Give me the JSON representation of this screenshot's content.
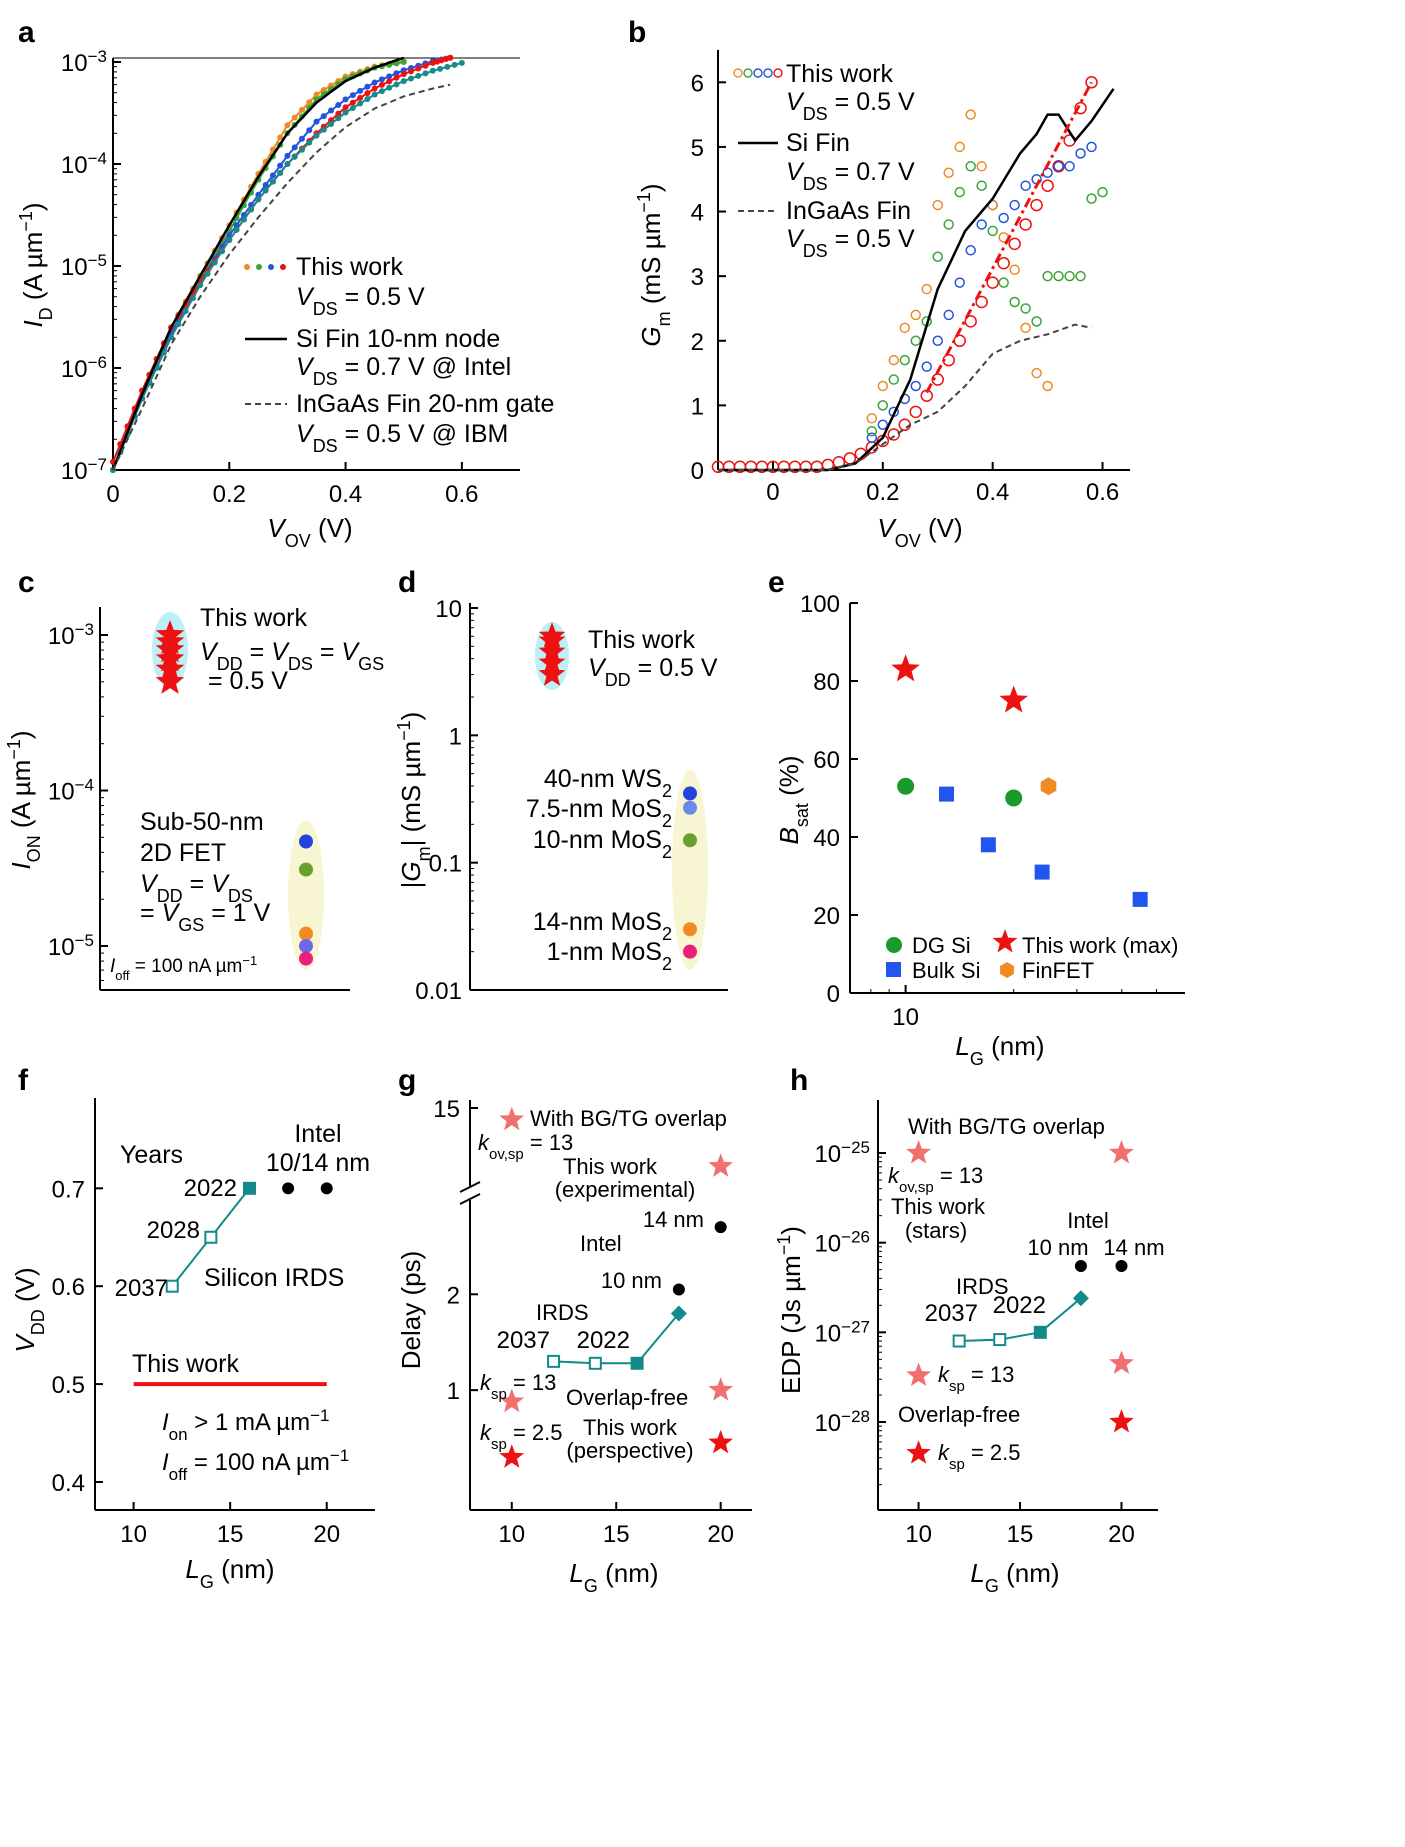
{
  "chart_data": [
    {
      "panel": "a",
      "type": "line",
      "xlabel": "V_OV (V)",
      "ylabel": "I_D (A μm^-1)",
      "xlim": [
        0,
        0.7
      ],
      "ylim": [
        1e-07,
        0.0011
      ],
      "yscale": "log",
      "x_ticks": [
        "0",
        "0.2",
        "0.4",
        "0.6"
      ],
      "y_ticks": [
        "10^-7",
        "10^-6",
        "10^-5",
        "10^-4",
        "10^-3"
      ],
      "series": [
        {
          "name": "This work",
          "color": "#f08a24",
          "x": [
            0,
            0.05,
            0.1,
            0.15,
            0.2,
            0.25,
            0.3,
            0.35,
            0.4,
            0.45,
            0.5
          ],
          "y": [
            1e-07,
            6e-07,
            2.5e-06,
            8e-06,
            2.5e-05,
            8e-05,
            0.00024,
            0.00048,
            0.00072,
            0.0009,
            0.00102
          ]
        },
        {
          "name": "This work",
          "color": "#3aa33a",
          "x": [
            0,
            0.05,
            0.1,
            0.15,
            0.2,
            0.25,
            0.3,
            0.35,
            0.4,
            0.45,
            0.5
          ],
          "y": [
            1e-07,
            5e-07,
            2.2e-06,
            7.5e-06,
            2.2e-05,
            7e-05,
            0.0002,
            0.00043,
            0.00068,
            0.00088,
            0.001
          ]
        },
        {
          "name": "This work",
          "color": "#2255dd",
          "x": [
            0,
            0.05,
            0.1,
            0.15,
            0.2,
            0.25,
            0.3,
            0.35,
            0.4,
            0.45,
            0.5,
            0.55,
            0.58
          ],
          "y": [
            1e-07,
            5e-07,
            2.2e-06,
            7e-06,
            2e-05,
            5e-05,
            0.00012,
            0.00026,
            0.00043,
            0.00063,
            0.00083,
            0.00102,
            0.0011
          ]
        },
        {
          "name": "This work",
          "color": "#ee1111",
          "x": [
            0,
            0.05,
            0.1,
            0.15,
            0.2,
            0.25,
            0.3,
            0.35,
            0.4,
            0.45,
            0.5,
            0.55,
            0.58
          ],
          "y": [
            1.2e-07,
            6e-07,
            2.5e-06,
            7e-06,
            1.8e-05,
            4.5e-05,
            0.0001,
            0.0002,
            0.00036,
            0.00055,
            0.00076,
            0.00098,
            0.0011
          ]
        },
        {
          "name": "This work",
          "color": "#1a8a8a",
          "x": [
            0,
            0.05,
            0.1,
            0.15,
            0.2,
            0.25,
            0.3,
            0.35,
            0.4,
            0.45,
            0.5,
            0.55,
            0.6
          ],
          "y": [
            1e-07,
            5e-07,
            2e-06,
            6.5e-06,
            1.8e-05,
            4.5e-05,
            0.0001,
            0.00019,
            0.00032,
            0.00048,
            0.00065,
            0.00082,
            0.00098
          ]
        },
        {
          "name": "Si Fin 10-nm node",
          "color": "#000000",
          "style": "solid",
          "x": [
            0,
            0.05,
            0.1,
            0.15,
            0.2,
            0.25,
            0.3,
            0.35,
            0.4,
            0.45,
            0.5
          ],
          "y": [
            1e-07,
            5.5e-07,
            2.5e-06,
            8e-06,
            2.5e-05,
            7.5e-05,
            0.0002,
            0.0004,
            0.00065,
            0.00088,
            0.0011
          ]
        },
        {
          "name": "InGaAs Fin 20-nm gate",
          "color": "#444444",
          "style": "dashed",
          "x": [
            0,
            0.05,
            0.1,
            0.15,
            0.2,
            0.25,
            0.3,
            0.35,
            0.4,
            0.45,
            0.5,
            0.55,
            0.58
          ],
          "y": [
            1e-07,
            4e-07,
            1.7e-06,
            5e-06,
            1.3e-05,
            3e-05,
            6.5e-05,
            0.00013,
            0.00023,
            0.00035,
            0.00046,
            0.00055,
            0.0006
          ]
        }
      ],
      "legend": [
        {
          "name": "This work",
          "cond": "V_DS = 0.5 V"
        },
        {
          "name": "Si Fin 10-nm node",
          "cond": "V_DS = 0.7 V @ Intel"
        },
        {
          "name": "InGaAs Fin 20-nm gate",
          "cond": "V_DS = 0.5 V @ IBM"
        }
      ]
    },
    {
      "panel": "b",
      "type": "scatter",
      "xlabel": "V_OV (V)",
      "ylabel": "G_m (mS μm^-1)",
      "xlim": [
        -0.1,
        0.65
      ],
      "ylim": [
        0,
        6.5
      ],
      "x_ticks": [
        "0",
        "0.2",
        "0.4",
        "0.6"
      ],
      "y_ticks": [
        "0",
        "1",
        "2",
        "3",
        "4",
        "5",
        "6"
      ],
      "series": [
        {
          "name": "This work",
          "color": "#ee1111",
          "marker": "open-circle",
          "x": [
            -0.1,
            -0.08,
            -0.06,
            -0.04,
            -0.02,
            0,
            0.02,
            0.04,
            0.06,
            0.08,
            0.1,
            0.12,
            0.14,
            0.16,
            0.18,
            0.2,
            0.22,
            0.24,
            0.26,
            0.28,
            0.3,
            0.32,
            0.34,
            0.36,
            0.38,
            0.4,
            0.42,
            0.44,
            0.46,
            0.48,
            0.5,
            0.52,
            0.54,
            0.56,
            0.58
          ],
          "y": [
            0.05,
            0.05,
            0.05,
            0.05,
            0.05,
            0.05,
            0.05,
            0.05,
            0.05,
            0.05,
            0.08,
            0.12,
            0.18,
            0.25,
            0.35,
            0.45,
            0.55,
            0.7,
            0.9,
            1.15,
            1.4,
            1.7,
            2.0,
            2.3,
            2.6,
            2.9,
            3.2,
            3.5,
            3.8,
            4.1,
            4.4,
            4.7,
            5.1,
            5.6,
            6.0
          ]
        },
        {
          "name": "This work",
          "color": "#2255dd",
          "marker": "open-circle",
          "x": [
            0.18,
            0.2,
            0.22,
            0.24,
            0.26,
            0.28,
            0.3,
            0.32,
            0.34,
            0.36,
            0.38,
            0.4,
            0.42,
            0.44,
            0.46,
            0.48,
            0.5,
            0.52,
            0.54,
            0.56,
            0.58
          ],
          "y": [
            0.5,
            0.7,
            0.9,
            1.1,
            1.3,
            1.6,
            2.0,
            2.4,
            2.9,
            3.4,
            3.8,
            4.1,
            3.9,
            4.1,
            4.4,
            4.5,
            4.6,
            4.7,
            4.7,
            4.9,
            5.0
          ]
        },
        {
          "name": "This work",
          "color": "#3aa33a",
          "marker": "open-circle",
          "x": [
            0.18,
            0.2,
            0.22,
            0.24,
            0.26,
            0.28,
            0.3,
            0.32,
            0.34,
            0.36,
            0.38,
            0.4,
            0.42,
            0.44,
            0.46,
            0.48,
            0.5,
            0.52,
            0.54,
            0.56,
            0.58,
            0.6
          ],
          "y": [
            0.6,
            1.0,
            1.4,
            1.7,
            2.0,
            2.3,
            3.3,
            3.8,
            4.3,
            4.7,
            4.4,
            3.7,
            2.9,
            2.6,
            2.5,
            2.3,
            3.0,
            3.0,
            3.0,
            3.0,
            4.2,
            4.3
          ]
        },
        {
          "name": "This work",
          "color": "#f08a24",
          "marker": "open-circle",
          "x": [
            0.18,
            0.2,
            0.22,
            0.24,
            0.26,
            0.28,
            0.3,
            0.32,
            0.34,
            0.36,
            0.38,
            0.4,
            0.42,
            0.44,
            0.46,
            0.48,
            0.5
          ],
          "y": [
            0.8,
            1.3,
            1.7,
            2.2,
            2.4,
            2.8,
            4.1,
            4.6,
            5.0,
            5.5,
            4.7,
            4.1,
            3.6,
            3.1,
            2.2,
            1.5,
            1.3
          ]
        },
        {
          "name": "Si Fin",
          "color": "#000000",
          "style": "solid",
          "x": [
            -0.1,
            0,
            0.1,
            0.15,
            0.2,
            0.25,
            0.3,
            0.35,
            0.4,
            0.45,
            0.48,
            0.5,
            0.52,
            0.55,
            0.58,
            0.62
          ],
          "y": [
            0,
            0,
            0,
            0.1,
            0.5,
            1.4,
            2.8,
            3.7,
            4.2,
            4.9,
            5.2,
            5.5,
            5.5,
            5.1,
            5.4,
            5.9
          ]
        },
        {
          "name": "InGaAs Fin",
          "color": "#444444",
          "style": "dashed",
          "x": [
            -0.1,
            0,
            0.1,
            0.15,
            0.2,
            0.25,
            0.3,
            0.35,
            0.4,
            0.45,
            0.5,
            0.55,
            0.58
          ],
          "y": [
            0,
            0,
            0,
            0.1,
            0.4,
            0.7,
            0.9,
            1.3,
            1.8,
            2.0,
            2.1,
            2.25,
            2.2
          ]
        }
      ],
      "fit": {
        "color": "#ee1111",
        "style": "dash-dot",
        "x": [
          0.28,
          0.58
        ],
        "y": [
          1.2,
          6.0
        ]
      },
      "legend": [
        {
          "name": "This work",
          "cond": "V_DS = 0.5 V"
        },
        {
          "name": "Si Fin",
          "cond": "V_DS = 0.7 V"
        },
        {
          "name": "InGaAs Fin",
          "cond": "V_DS = 0.5 V"
        }
      ]
    },
    {
      "panel": "c",
      "type": "scatter",
      "ylabel": "I_ON (A μm^-1)",
      "yscale": "log",
      "ylim": [
        8e-06,
        0.002
      ],
      "y_ticks": [
        "10^-5",
        "10^-4",
        "10^-3"
      ],
      "this_work": {
        "label": "This work",
        "cond1": "V_DD = V_DS = V_GS",
        "cond2": "= 0.5 V",
        "values": [
          0.0005,
          0.0006,
          0.0007,
          0.0008,
          0.0009,
          0.001
        ]
      },
      "points": [
        {
          "y": 4.7e-05,
          "color": "#2244dd"
        },
        {
          "y": 3.1e-05,
          "color": "#6aa02a"
        },
        {
          "y": 1.2e-05,
          "color": "#f08a24"
        },
        {
          "y": 1e-05,
          "color": "#6a6ae8"
        },
        {
          "y": 8.3e-06,
          "color": "#e8207a"
        }
      ],
      "group_label": [
        "Sub-50-nm",
        "2D FET",
        "V_DD = V_DS",
        "= V_GS = 1 V"
      ],
      "note": "I_off = 100 nA μm^-1"
    },
    {
      "panel": "d",
      "type": "scatter",
      "ylabel": "|G_m| (mS μm^-1)",
      "yscale": "log",
      "ylim": [
        0.01,
        10
      ],
      "y_ticks": [
        "0.01",
        "0.1",
        "1",
        "10"
      ],
      "this_work": {
        "label": "This work",
        "cond": "V_DD = 0.5 V",
        "values": [
          3,
          3.7,
          4.5,
          5.5,
          6
        ]
      },
      "points": [
        {
          "label": "40-nm WS2",
          "y": 0.35,
          "color": "#2244dd"
        },
        {
          "label": "7.5-nm MoS2",
          "y": 0.27,
          "color": "#6a8ae8"
        },
        {
          "label": "10-nm MoS2",
          "y": 0.15,
          "color": "#6aa02a"
        },
        {
          "label": "14-nm MoS2",
          "y": 0.03,
          "color": "#f08a24"
        },
        {
          "label": "1-nm MoS2",
          "y": 0.02,
          "color": "#e8207a"
        }
      ]
    },
    {
      "panel": "e",
      "type": "scatter",
      "xlabel": "L_G (nm)",
      "ylabel": "B_sat (%)",
      "xscale": "log",
      "ylim": [
        0,
        100
      ],
      "y_ticks": [
        "0",
        "20",
        "40",
        "60",
        "80",
        "100"
      ],
      "x_ticks": [
        "10"
      ],
      "series": [
        {
          "name": "DG Si",
          "marker": "circle",
          "color": "#1a9a2a",
          "x": [
            10,
            20
          ],
          "y": [
            53,
            50
          ]
        },
        {
          "name": "Bulk Si",
          "marker": "square",
          "color": "#2255ee",
          "x": [
            13,
            17,
            24,
            45
          ],
          "y": [
            51,
            38,
            31,
            24
          ]
        },
        {
          "name": "This work (max)",
          "marker": "star",
          "color": "#ee1111",
          "x": [
            10,
            20
          ],
          "y": [
            83,
            75
          ]
        },
        {
          "name": "FinFET",
          "marker": "hexagon",
          "color": "#f08a24",
          "x": [
            25
          ],
          "y": [
            53
          ]
        }
      ]
    },
    {
      "panel": "f",
      "type": "line",
      "xlabel": "L_G (nm)",
      "ylabel": "V_DD (V)",
      "xlim": [
        8,
        22.5
      ],
      "ylim": [
        0.4,
        0.78
      ],
      "x_ticks": [
        "10",
        "15",
        "20"
      ],
      "y_ticks": [
        "0.4",
        "0.5",
        "0.6",
        "0.7"
      ],
      "irds": {
        "x": [
          12,
          14,
          16
        ],
        "y": [
          0.6,
          0.65,
          0.7
        ],
        "labels": [
          "2037",
          "2028",
          "2022"
        ],
        "color": "#138a8a"
      },
      "intel": {
        "x": [
          18,
          20
        ],
        "y": [
          0.7,
          0.7
        ]
      },
      "this_work": {
        "x": [
          10,
          20
        ],
        "y": [
          0.5,
          0.5
        ],
        "color": "#ee1111"
      },
      "text": {
        "years": "Years",
        "intel1": "Intel",
        "intel2": "10/14 nm",
        "silicon": "Silicon IRDS",
        "this_work": "This work",
        "ion": "I_on > 1 mA μm^-1",
        "ioff": "I_off = 100 nA μm^-1"
      }
    },
    {
      "panel": "g",
      "type": "scatter",
      "xlabel": "L_G (nm)",
      "ylabel": "Delay (ps)",
      "y_ticks": [
        "1",
        "2",
        "15"
      ],
      "x_ticks": [
        "10",
        "15",
        "20"
      ],
      "irds": {
        "x": [
          12,
          14,
          16,
          18
        ],
        "y": [
          1.3,
          1.28,
          1.28,
          1.8
        ],
        "labels": [
          "2037",
          "2022"
        ],
        "color": "#138a8a"
      },
      "intel": {
        "x": [
          18,
          20
        ],
        "y": [
          2.05,
          2.7
        ],
        "labels": [
          "10 nm",
          "14 nm"
        ]
      },
      "stars_experimental": {
        "x": [
          10,
          20
        ],
        "y": [
          14.5,
          12.5
        ],
        "color": "#f07070"
      },
      "stars_ksp13": {
        "x": [
          10,
          20
        ],
        "y": [
          0.88,
          1.0
        ],
        "color": "#f07070"
      },
      "stars_ksp25": {
        "x": [
          10,
          20
        ],
        "y": [
          0.3,
          0.45
        ],
        "color": "#ee1111"
      },
      "text": {
        "overlap": "With BG/TG overlap",
        "kov": "k_ov,sp = 13",
        "tw_exp1": "This work",
        "tw_exp2": "(experimental)",
        "intel": "Intel",
        "irds": "IRDS",
        "ksp13": "k_sp = 13",
        "overlap_free": "Overlap-free",
        "ksp25": "k_sp = 2.5",
        "tw_persp1": "This work",
        "tw_persp2": "(perspective)"
      }
    },
    {
      "panel": "h",
      "type": "scatter",
      "xlabel": "L_G (nm)",
      "ylabel": "EDP (Js μm^-1)",
      "yscale": "log",
      "y_ticks": [
        "10^-28",
        "10^-27",
        "10^-26",
        "10^-25"
      ],
      "x_ticks": [
        "10",
        "15",
        "20"
      ],
      "irds": {
        "x": [
          12,
          14,
          16,
          18
        ],
        "y": [
          8e-28,
          8.3e-28,
          1e-27,
          2.4e-27
        ],
        "labels": [
          "2037",
          "2022"
        ],
        "color": "#138a8a"
      },
      "intel": {
        "x": [
          18,
          20
        ],
        "y": [
          5.5e-27,
          5.5e-27
        ],
        "labels": [
          "10 nm",
          "14 nm"
        ]
      },
      "stars_overlap": {
        "x": [
          10,
          20
        ],
        "y": [
          1e-25,
          1e-25
        ],
        "color": "#f07070"
      },
      "stars_ksp13": {
        "x": [
          10,
          20
        ],
        "y": [
          3.3e-28,
          4.5e-28
        ],
        "color": "#f07070"
      },
      "stars_ksp25": {
        "x": [
          10,
          20
        ],
        "y": [
          4.5e-29,
          1e-28
        ],
        "color": "#ee1111"
      },
      "text": {
        "overlap": "With BG/TG overlap",
        "kov": "k_ov,sp = 13",
        "tw1": "This work",
        "tw2": "(stars)",
        "intel": "Intel",
        "irds": "IRDS",
        "ksp13": "k_sp = 13",
        "overlap_free": "Overlap-free",
        "ksp25": "k_sp = 2.5"
      }
    }
  ]
}
